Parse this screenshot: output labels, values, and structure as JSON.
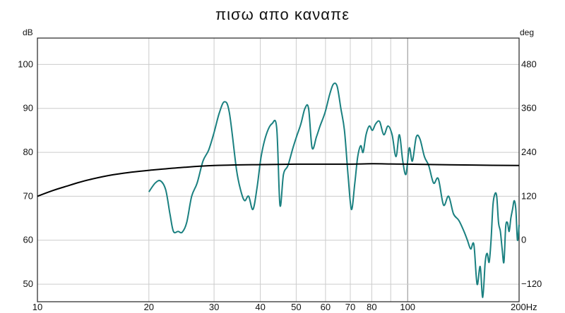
{
  "chart_data": {
    "type": "line",
    "title": "πισω απο καναπε",
    "y_left_unit": "dB",
    "y_right_unit": "deg",
    "x_unit": "Hz",
    "x_scale": "log",
    "xlim": [
      10,
      200
    ],
    "ylim_left": [
      46,
      106
    ],
    "ylim_right": [
      -168,
      552
    ],
    "grid": true,
    "x_ticks": [
      {
        "value": 10,
        "label": "10"
      },
      {
        "value": 20,
        "label": "20"
      },
      {
        "value": 30,
        "label": "30"
      },
      {
        "value": 40,
        "label": "40"
      },
      {
        "value": 50,
        "label": "50"
      },
      {
        "value": 60,
        "label": "60"
      },
      {
        "value": 70,
        "label": "70"
      },
      {
        "value": 80,
        "label": "80"
      },
      {
        "value": 100,
        "label": "100"
      },
      {
        "value": 200,
        "label": "200"
      }
    ],
    "x_minor_grid": [
      90
    ],
    "y_left_ticks": [
      50,
      60,
      70,
      80,
      90,
      100
    ],
    "y_right_ticks": [
      -120,
      0,
      120,
      240,
      360,
      480
    ],
    "series": [
      {
        "color": "#1a8080",
        "axis": "left",
        "x": [
          20,
          20.8,
          21.5,
          22.2,
          22.8,
          23.3,
          24,
          24.6,
          25.3,
          26.1,
          27,
          28,
          29,
          30,
          31,
          32,
          33,
          34.5,
          35.5,
          36.3,
          37.2,
          38.2,
          39.2,
          40.2,
          41.5,
          43,
          44.3,
          45.2,
          46.2,
          47.5,
          49,
          50.3,
          51.5,
          52.8,
          54,
          55.2,
          56.7,
          58,
          59.8,
          61.5,
          63,
          64.5,
          66,
          67.5,
          69,
          70.5,
          72,
          73.3,
          74.7,
          75.8,
          77.2,
          78.8,
          80.3,
          82,
          84,
          86.2,
          88.5,
          90.8,
          93,
          95,
          97,
          99,
          101,
          103,
          105.5,
          108,
          111,
          114,
          117.5,
          121,
          125,
          129,
          133,
          137.5,
          142,
          145,
          148,
          151,
          154,
          157,
          159.5,
          162,
          164,
          166,
          168,
          170,
          172,
          174,
          176,
          178,
          180,
          182,
          184,
          186,
          188,
          190,
          192,
          194,
          196,
          198,
          200
        ],
        "y": [
          71,
          73,
          73.5,
          71.5,
          66,
          62,
          62,
          61.8,
          64,
          70,
          73,
          78,
          80.5,
          84.5,
          89,
          91.5,
          89,
          76,
          71,
          69,
          70,
          67,
          72,
          79,
          84,
          86.5,
          85.5,
          68,
          75,
          77,
          81,
          84,
          86.5,
          90,
          90,
          81,
          83.5,
          86,
          89,
          93,
          95.5,
          95,
          90,
          85,
          75,
          67,
          73,
          79,
          81.5,
          80,
          84,
          86,
          85,
          86.5,
          87,
          84,
          86,
          84,
          79,
          84,
          78,
          75,
          81,
          78,
          83.5,
          83,
          79,
          77,
          73,
          74,
          68,
          70,
          66,
          64.5,
          62,
          60,
          58,
          59,
          50,
          54,
          47,
          55,
          57,
          55,
          60,
          68,
          70.5,
          70,
          64,
          62,
          58,
          55,
          63,
          64,
          62,
          65,
          67,
          69,
          67,
          60,
          63.5
        ]
      },
      {
        "color": "#000000",
        "axis": "left",
        "x": [
          10,
          11,
          12,
          13,
          14,
          16,
          18,
          20,
          25,
          30,
          40,
          50,
          60,
          70,
          80,
          90,
          100,
          120,
          150,
          200
        ],
        "y": [
          70,
          71.3,
          72.3,
          73.2,
          73.9,
          74.9,
          75.5,
          75.9,
          76.6,
          77,
          77.2,
          77.3,
          77.3,
          77.3,
          77.4,
          77.35,
          77.3,
          77.2,
          77.1,
          77
        ]
      }
    ]
  }
}
